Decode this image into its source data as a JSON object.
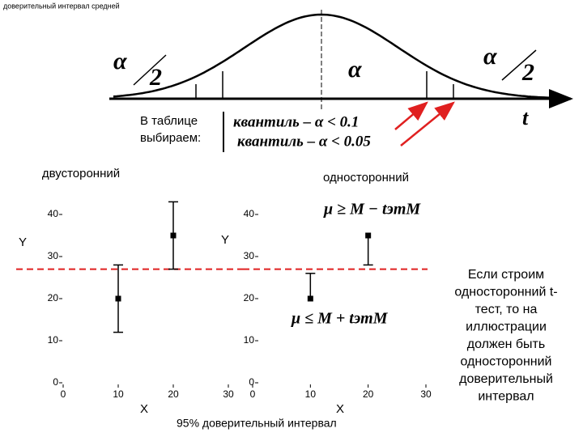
{
  "title": "доверительный интервал средней",
  "diagram": {
    "alpha_half_left": {
      "alpha": "α",
      "two": "2"
    },
    "alpha": "α",
    "alpha_half_right": {
      "alpha": "α",
      "two": "2"
    },
    "t": "t",
    "table_note": [
      "В таблице",
      "выбираем:"
    ],
    "quantiles": [
      "квантиль – α < 0.1",
      "квантиль – α < 0.05"
    ]
  },
  "chart_data": [
    {
      "type": "errorbar",
      "title": "двусторонний",
      "x_label": "X",
      "y_label": "Y",
      "xlim": [
        0,
        30
      ],
      "ylim": [
        0,
        45
      ],
      "xticks": [
        0,
        10,
        20,
        30
      ],
      "yticks": [
        0,
        10,
        20,
        30,
        40
      ],
      "x": [
        10,
        20
      ],
      "values": [
        20,
        35
      ],
      "error_minus": [
        8,
        8
      ],
      "error_plus": [
        8,
        8
      ],
      "color": "#000000",
      "reference_line": {
        "value": 27,
        "color": "#e02020"
      }
    },
    {
      "type": "errorbar",
      "title": "односторонний",
      "x_label": "X",
      "y_label": "Y",
      "xlim": [
        0,
        30
      ],
      "ylim": [
        0,
        45
      ],
      "xticks": [
        0,
        10,
        20,
        30
      ],
      "yticks": [
        0,
        10,
        20,
        30,
        40
      ],
      "x": [
        10,
        20
      ],
      "values": [
        20,
        35
      ],
      "error_minus": [
        null,
        7
      ],
      "error_plus": [
        6,
        null
      ],
      "color": "#000000",
      "reference_line": {
        "value": 27,
        "color": "#e02020"
      },
      "annotations": [
        "μ ≥ M − tэmM",
        "μ ≤ M + tэmM"
      ]
    }
  ],
  "caption": "95% доверительный интервал",
  "note": [
    "Если строим",
    "односторонний t-",
    "тест, то на",
    "иллюстрации",
    "должен быть",
    "односторонний",
    "доверительный",
    "интервал"
  ]
}
